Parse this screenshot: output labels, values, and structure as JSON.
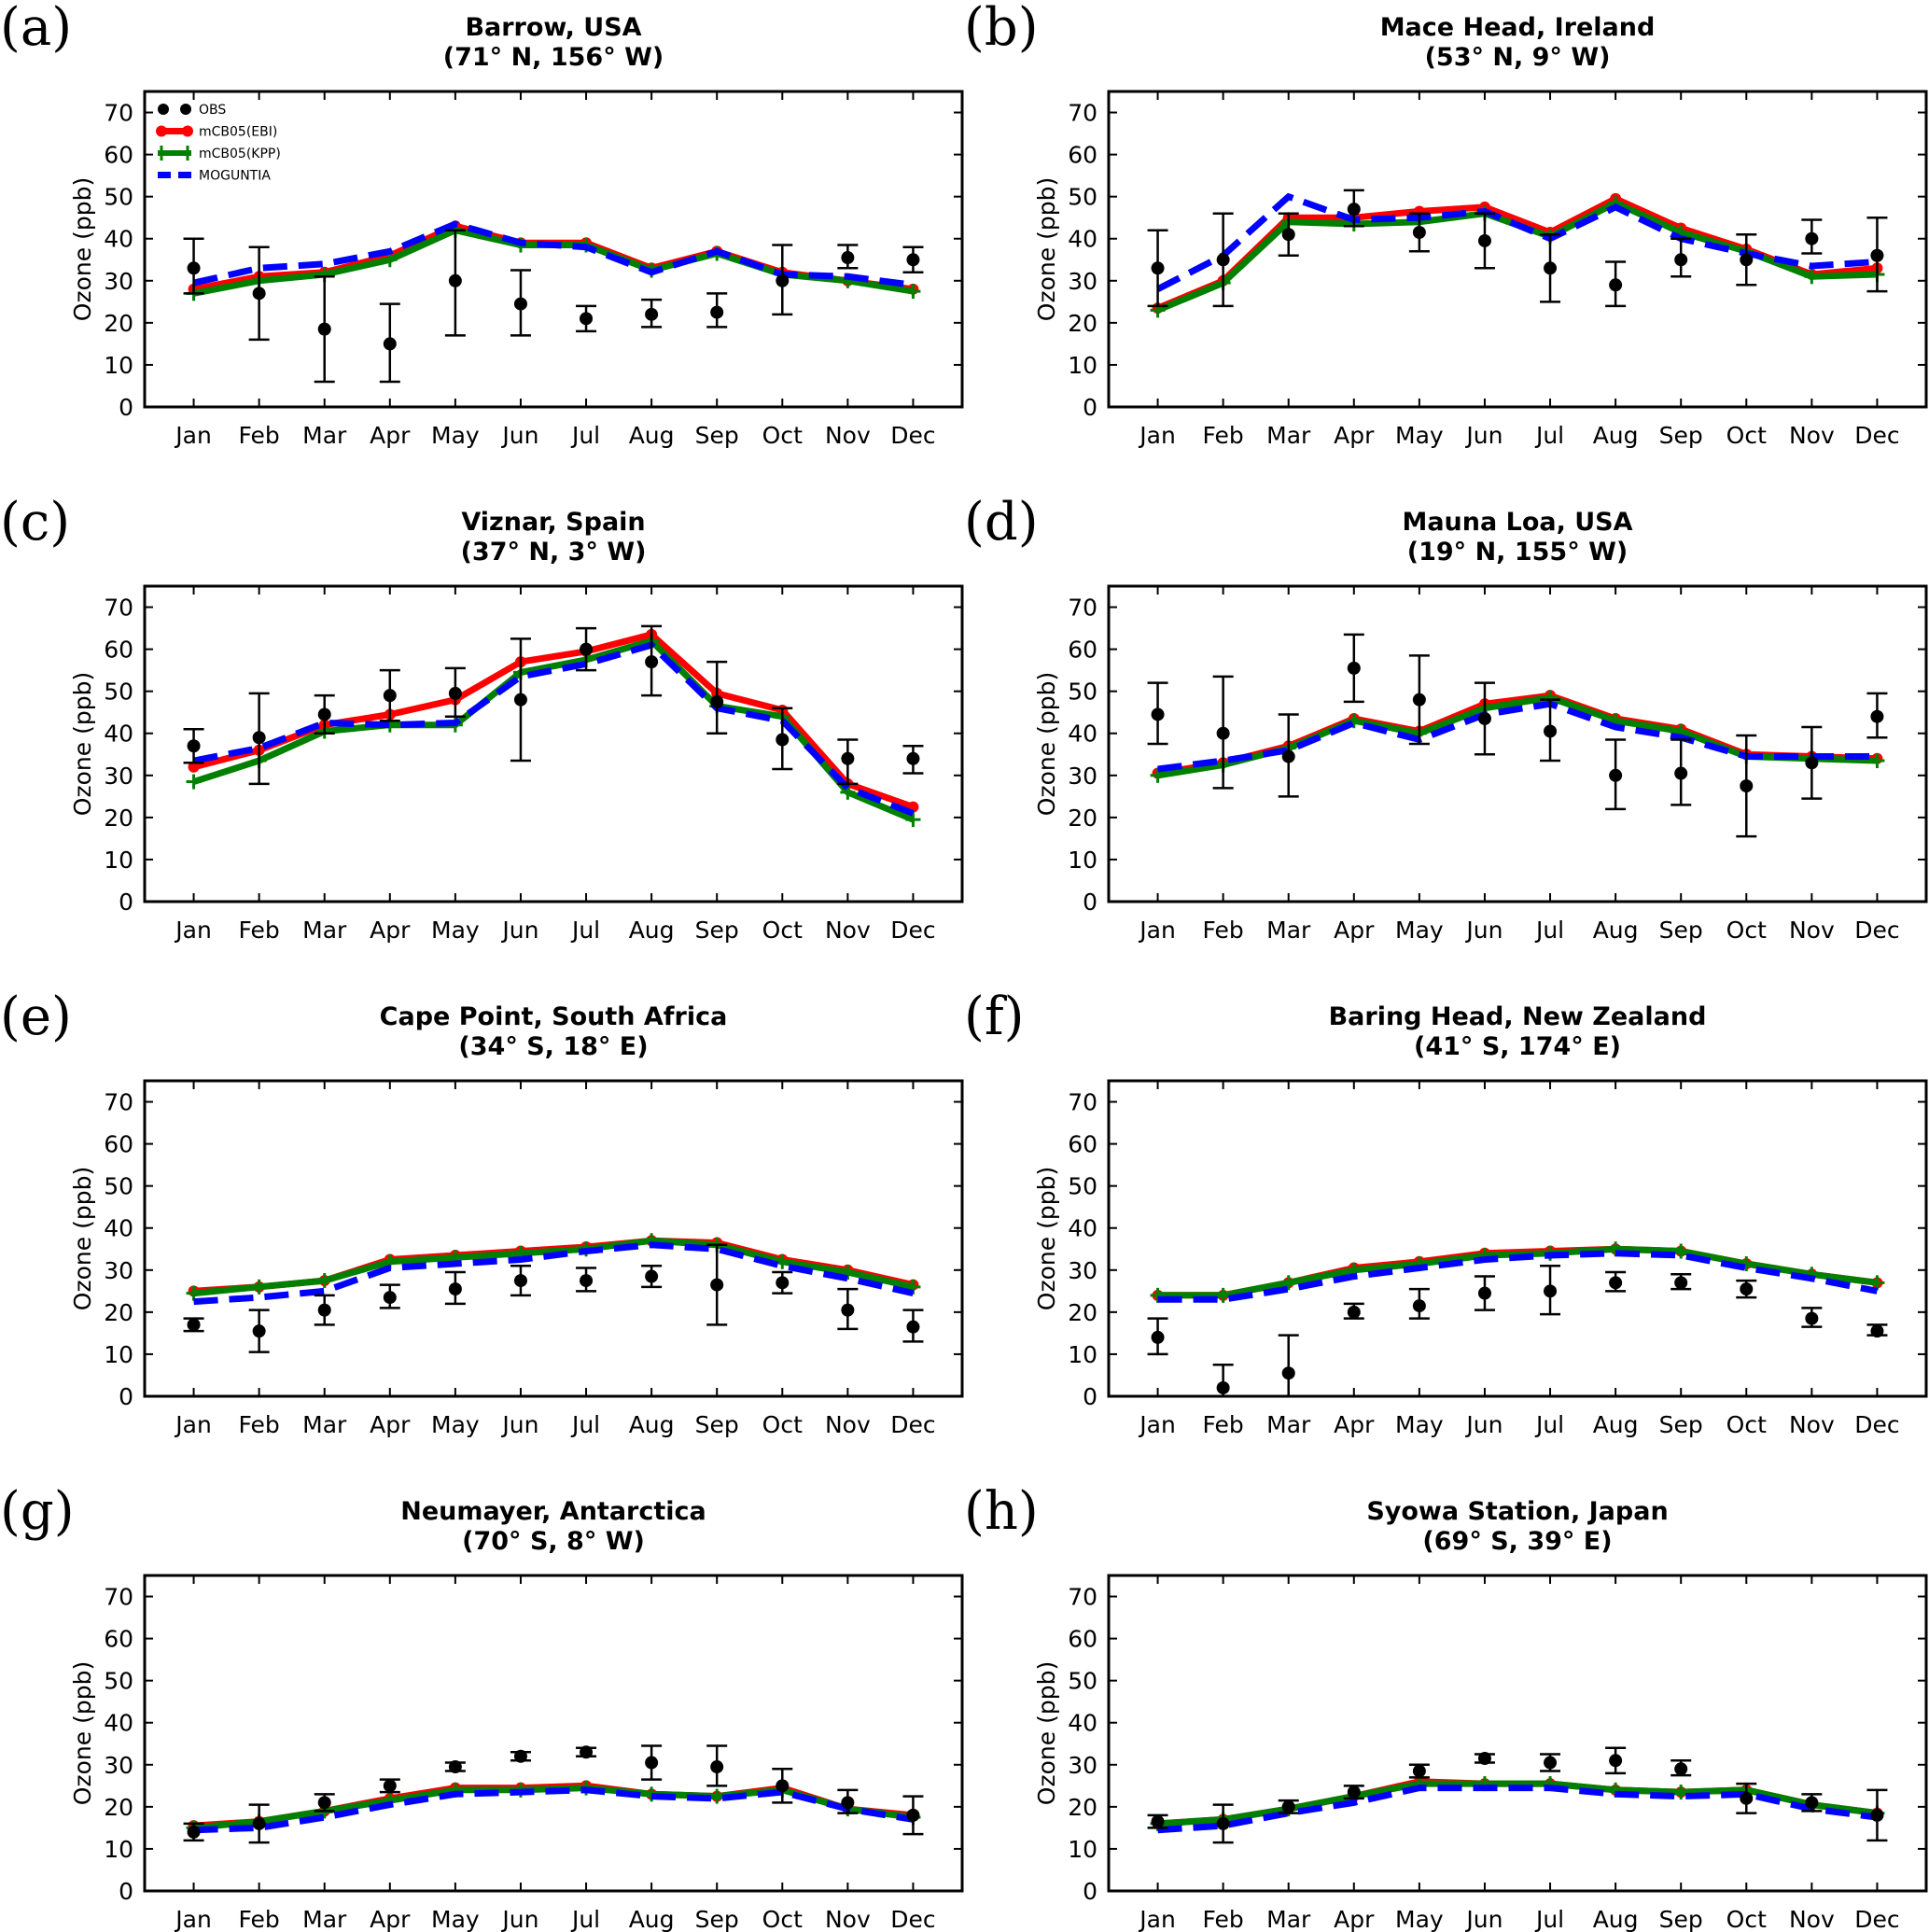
{
  "legend": [
    {
      "name": "OBS",
      "color": "#000000",
      "style": "markers"
    },
    {
      "name": "mCB05(EBI)",
      "color": "#ff0000",
      "style": "line-circle"
    },
    {
      "name": "mCB05(KPP)",
      "color": "#008000",
      "style": "line-plus"
    },
    {
      "name": "MOGUNTIA",
      "color": "#0000ff",
      "style": "dashed"
    }
  ],
  "chart_data": [
    {
      "type": "line",
      "panel": "(a)",
      "title": "Barrow, USA",
      "subtitle": "(71° N, 156° W)",
      "categories": [
        "Jan",
        "Feb",
        "Mar",
        "Apr",
        "May",
        "Jun",
        "Jul",
        "Aug",
        "Sep",
        "Oct",
        "Nov",
        "Dec"
      ],
      "ylabel": "Ozone (ppb)",
      "ylim": [
        0,
        75
      ],
      "yticks": [
        0,
        10,
        20,
        30,
        40,
        50,
        60,
        70
      ],
      "legend_position": "top-left",
      "series": [
        {
          "name": "OBS",
          "values": [
            33,
            27,
            18.5,
            15,
            30,
            24.5,
            21,
            22,
            22.5,
            30,
            35.5,
            35
          ],
          "err_low": [
            27,
            16,
            6,
            6,
            17,
            17,
            18,
            19,
            19,
            22,
            33,
            32
          ],
          "err_high": [
            40,
            38,
            31,
            24.5,
            42,
            32.5,
            24,
            25.5,
            27,
            38.5,
            38.5,
            38
          ]
        },
        {
          "name": "mCB05(EBI)",
          "values": [
            28,
            31,
            32,
            36,
            43,
            39,
            39,
            33,
            37,
            32,
            30,
            28
          ]
        },
        {
          "name": "mCB05(KPP)",
          "values": [
            27,
            30,
            31.5,
            35,
            42,
            38.5,
            38.5,
            32.5,
            36.5,
            31.5,
            30,
            27.5
          ]
        },
        {
          "name": "MOGUNTIA",
          "values": [
            29.5,
            33,
            34,
            37,
            43.5,
            39,
            38,
            32,
            37,
            31.5,
            31,
            29
          ]
        }
      ]
    },
    {
      "type": "line",
      "panel": "(b)",
      "title": "Mace Head, Ireland",
      "subtitle": "(53° N, 9° W)",
      "categories": [
        "Jan",
        "Feb",
        "Mar",
        "Apr",
        "May",
        "Jun",
        "Jul",
        "Aug",
        "Sep",
        "Oct",
        "Nov",
        "Dec"
      ],
      "ylabel": "Ozone (ppb)",
      "ylim": [
        0,
        75
      ],
      "yticks": [
        0,
        10,
        20,
        30,
        40,
        50,
        60,
        70
      ],
      "series": [
        {
          "name": "OBS",
          "values": [
            33,
            35,
            41,
            47,
            41.5,
            39.5,
            33,
            29,
            35,
            35,
            40,
            36
          ],
          "err_low": [
            24,
            24,
            36,
            43,
            37,
            33,
            25,
            24,
            31,
            29,
            36.5,
            27.5
          ],
          "err_high": [
            42,
            46,
            46,
            51.5,
            46,
            46,
            41,
            34.5,
            40,
            41,
            44.5,
            45
          ]
        },
        {
          "name": "mCB05(EBI)",
          "values": [
            23.5,
            30,
            45,
            45,
            46.5,
            47.5,
            41.5,
            49.5,
            42.5,
            37.5,
            31.5,
            33
          ]
        },
        {
          "name": "mCB05(KPP)",
          "values": [
            23,
            29.5,
            44,
            43.5,
            44,
            46,
            40.5,
            48.5,
            41.5,
            37,
            31,
            31.5
          ]
        },
        {
          "name": "MOGUNTIA",
          "values": [
            28,
            36,
            50,
            44.5,
            45,
            46.5,
            40,
            47.5,
            40,
            36.5,
            33.5,
            34.5
          ]
        }
      ]
    },
    {
      "type": "line",
      "panel": "(c)",
      "title": "Viznar, Spain",
      "subtitle": "(37° N, 3° W)",
      "categories": [
        "Jan",
        "Feb",
        "Mar",
        "Apr",
        "May",
        "Jun",
        "Jul",
        "Aug",
        "Sep",
        "Oct",
        "Nov",
        "Dec"
      ],
      "ylabel": "Ozone (ppb)",
      "ylim": [
        0,
        75
      ],
      "yticks": [
        0,
        10,
        20,
        30,
        40,
        50,
        60,
        70
      ],
      "series": [
        {
          "name": "OBS",
          "values": [
            37,
            39,
            44.5,
            49,
            49.5,
            48,
            60,
            57,
            47.5,
            38.5,
            34,
            34
          ],
          "err_low": [
            33,
            28,
            40,
            43,
            44,
            33.5,
            55,
            49,
            40,
            31.5,
            28,
            30.5
          ],
          "err_high": [
            41,
            49.5,
            49,
            55,
            55.5,
            62.5,
            65,
            65.5,
            57,
            46,
            38.5,
            37
          ]
        },
        {
          "name": "mCB05(EBI)",
          "values": [
            32,
            36,
            42,
            44.5,
            48,
            57,
            59.5,
            63.5,
            49.5,
            45.5,
            28,
            22.5
          ]
        },
        {
          "name": "mCB05(KPP)",
          "values": [
            28.5,
            33.5,
            40.5,
            42,
            42,
            54.5,
            57.5,
            62,
            46.5,
            44,
            26,
            19.5
          ]
        },
        {
          "name": "MOGUNTIA",
          "values": [
            33.5,
            36.5,
            42.5,
            42,
            42.5,
            53.5,
            56.5,
            61,
            46,
            43,
            27,
            21
          ]
        }
      ]
    },
    {
      "type": "line",
      "panel": "(d)",
      "title": "Mauna Loa, USA",
      "subtitle": "(19° N, 155° W)",
      "categories": [
        "Jan",
        "Feb",
        "Mar",
        "Apr",
        "May",
        "Jun",
        "Jul",
        "Aug",
        "Sep",
        "Oct",
        "Nov",
        "Dec"
      ],
      "ylabel": "Ozone (ppb)",
      "ylim": [
        0,
        75
      ],
      "yticks": [
        0,
        10,
        20,
        30,
        40,
        50,
        60,
        70
      ],
      "series": [
        {
          "name": "OBS",
          "values": [
            44.5,
            40,
            34.5,
            55.5,
            48,
            43.5,
            40.5,
            30,
            30.5,
            27.5,
            33,
            44
          ],
          "err_low": [
            37.5,
            27,
            25,
            47.5,
            37.5,
            35,
            33.5,
            22,
            23,
            15.5,
            24.5,
            39
          ],
          "err_high": [
            52,
            53.5,
            44.5,
            63.5,
            58.5,
            52,
            48,
            38.5,
            38.5,
            39.5,
            41.5,
            49.5
          ]
        },
        {
          "name": "mCB05(EBI)",
          "values": [
            30.5,
            33,
            37,
            43.5,
            40.5,
            47,
            49,
            43.5,
            41,
            35,
            34.5,
            34
          ]
        },
        {
          "name": "mCB05(KPP)",
          "values": [
            30,
            32.5,
            36.5,
            43,
            40,
            46,
            48.5,
            43,
            40.5,
            34.5,
            34,
            33.5
          ]
        },
        {
          "name": "MOGUNTIA",
          "values": [
            31.5,
            33.5,
            36,
            42.5,
            38.5,
            44.5,
            47,
            41.5,
            39,
            34.5,
            34.5,
            34.5
          ]
        }
      ]
    },
    {
      "type": "line",
      "panel": "(e)",
      "title": "Cape Point, South Africa",
      "subtitle": "(34° S, 18° E)",
      "categories": [
        "Jan",
        "Feb",
        "Mar",
        "Apr",
        "May",
        "Jun",
        "Jul",
        "Aug",
        "Sep",
        "Oct",
        "Nov",
        "Dec"
      ],
      "ylabel": "Ozone (ppb)",
      "ylim": [
        0,
        75
      ],
      "yticks": [
        0,
        10,
        20,
        30,
        40,
        50,
        60,
        70
      ],
      "series": [
        {
          "name": "OBS",
          "values": [
            17,
            15.5,
            20.5,
            23.5,
            25.5,
            27.5,
            27.5,
            28.5,
            26.5,
            27,
            20.5,
            16.5
          ],
          "err_low": [
            15.5,
            10.5,
            17,
            21,
            22,
            24,
            25,
            26,
            17,
            24.5,
            16,
            13
          ],
          "err_high": [
            18.5,
            20.5,
            24,
            26.5,
            29.5,
            31,
            30.5,
            31,
            36,
            29.5,
            25.5,
            20.5
          ]
        },
        {
          "name": "mCB05(EBI)",
          "values": [
            25,
            26,
            27.5,
            32.5,
            33.5,
            34.5,
            35.5,
            37,
            36.5,
            32.5,
            30,
            26.5
          ]
        },
        {
          "name": "mCB05(KPP)",
          "values": [
            24.5,
            26,
            27.5,
            32,
            33,
            34,
            35,
            37,
            36,
            32,
            29.5,
            26
          ]
        },
        {
          "name": "MOGUNTIA",
          "values": [
            22.5,
            23.5,
            25,
            30.5,
            31.5,
            32.5,
            34.5,
            36,
            35,
            31,
            28,
            24.5
          ]
        }
      ]
    },
    {
      "type": "line",
      "panel": "(f)",
      "title": "Baring Head, New Zealand",
      "subtitle": "(41° S, 174° E)",
      "categories": [
        "Jan",
        "Feb",
        "Mar",
        "Apr",
        "May",
        "Jun",
        "Jul",
        "Aug",
        "Sep",
        "Oct",
        "Nov",
        "Dec"
      ],
      "ylabel": "Ozone (ppb)",
      "ylim": [
        0,
        75
      ],
      "yticks": [
        0,
        10,
        20,
        30,
        40,
        50,
        60,
        70
      ],
      "series": [
        {
          "name": "OBS",
          "values": [
            14,
            2,
            5.5,
            20,
            21.5,
            24.5,
            25,
            27,
            27,
            25.5,
            18.5,
            15.5
          ],
          "err_low": [
            10,
            0,
            0,
            18.5,
            18.5,
            20.5,
            19.5,
            25,
            25.5,
            23.5,
            16.5,
            14.5
          ],
          "err_high": [
            18.5,
            7.5,
            14.5,
            22,
            25.5,
            28.5,
            31,
            29.5,
            29,
            27.5,
            21,
            17
          ]
        },
        {
          "name": "mCB05(EBI)",
          "values": [
            24,
            24,
            27,
            30.5,
            32,
            34,
            34.5,
            35,
            34.5,
            31.5,
            29,
            27
          ]
        },
        {
          "name": "mCB05(KPP)",
          "values": [
            24,
            24,
            27,
            30,
            31.5,
            33.5,
            34,
            35,
            34.5,
            31.5,
            29,
            27
          ]
        },
        {
          "name": "MOGUNTIA",
          "values": [
            23,
            23,
            25.5,
            28.5,
            30.5,
            32.5,
            33.5,
            34,
            33.5,
            30.5,
            28,
            25
          ]
        }
      ]
    },
    {
      "type": "line",
      "panel": "(g)",
      "title": "Neumayer, Antarctica",
      "subtitle": "(70° S, 8° W)",
      "categories": [
        "Jan",
        "Feb",
        "Mar",
        "Apr",
        "May",
        "Jun",
        "Jul",
        "Aug",
        "Sep",
        "Oct",
        "Nov",
        "Dec"
      ],
      "ylabel": "Ozone (ppb)",
      "ylim": [
        0,
        75
      ],
      "yticks": [
        0,
        10,
        20,
        30,
        40,
        50,
        60,
        70
      ],
      "series": [
        {
          "name": "OBS",
          "values": [
            14,
            16,
            21,
            25,
            29.5,
            32,
            33,
            30.5,
            29.5,
            25,
            21,
            18
          ],
          "err_low": [
            12,
            11.5,
            19,
            23.5,
            28.5,
            31,
            32,
            26.5,
            25,
            21,
            18.5,
            13.5
          ],
          "err_high": [
            16,
            20.5,
            23,
            26.5,
            30.5,
            33,
            34,
            34.5,
            34.5,
            29,
            24,
            22.5
          ]
        },
        {
          "name": "mCB05(EBI)",
          "values": [
            15.5,
            16.5,
            19,
            22,
            24.5,
            24.5,
            25,
            23,
            22.5,
            24.5,
            19.5,
            18
          ]
        },
        {
          "name": "mCB05(KPP)",
          "values": [
            15,
            16.5,
            19,
            21.5,
            24,
            24,
            24.5,
            23,
            22.5,
            24,
            19.5,
            17.5
          ]
        },
        {
          "name": "MOGUNTIA",
          "values": [
            14.5,
            15,
            17.5,
            20.5,
            23,
            23.5,
            24,
            22.5,
            22,
            23.5,
            19.5,
            17
          ]
        }
      ]
    },
    {
      "type": "line",
      "panel": "(h)",
      "title": "Syowa Station, Japan",
      "subtitle": "(69° S, 39° E)",
      "categories": [
        "Jan",
        "Feb",
        "Mar",
        "Apr",
        "May",
        "Jun",
        "Jul",
        "Aug",
        "Sep",
        "Oct",
        "Nov",
        "Dec"
      ],
      "ylabel": "Ozone (ppb)",
      "ylim": [
        0,
        75
      ],
      "yticks": [
        0,
        10,
        20,
        30,
        40,
        50,
        60,
        70
      ],
      "series": [
        {
          "name": "OBS",
          "values": [
            16.5,
            16,
            20,
            23.5,
            28.5,
            31.5,
            30.5,
            31,
            29,
            22,
            21,
            18
          ],
          "err_low": [
            15,
            11.5,
            18.5,
            22,
            27,
            30.5,
            28.5,
            28,
            27.5,
            18.5,
            19,
            12
          ],
          "err_high": [
            18,
            20.5,
            21.5,
            25,
            30,
            32.5,
            32.5,
            34,
            31,
            25.5,
            23,
            24
          ]
        },
        {
          "name": "mCB05(EBI)",
          "values": [
            16,
            17,
            19.5,
            22.5,
            26,
            25.5,
            25.5,
            24,
            23.5,
            24,
            20.5,
            18.5
          ]
        },
        {
          "name": "mCB05(KPP)",
          "values": [
            16,
            17,
            19.5,
            22.5,
            25.5,
            25.5,
            25.5,
            24,
            23.5,
            24,
            20.5,
            18.5
          ]
        },
        {
          "name": "MOGUNTIA",
          "values": [
            14.5,
            15.5,
            18.5,
            21,
            24.5,
            24.5,
            24.5,
            23,
            22.5,
            23,
            19.5,
            17.5
          ]
        }
      ]
    }
  ]
}
